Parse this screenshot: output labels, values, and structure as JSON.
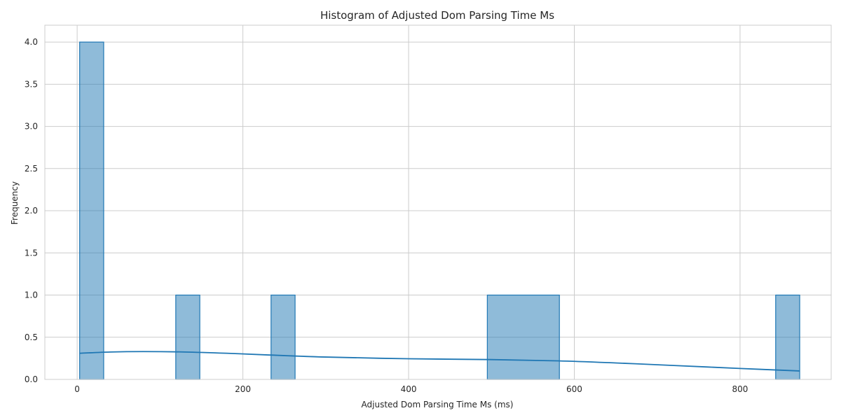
{
  "chart_data": {
    "type": "histogram",
    "title": "Histogram of Adjusted Dom Parsing Time Ms",
    "xlabel": "Adjusted Dom Parsing Time Ms (ms)",
    "ylabel": "Frequency",
    "xlim": [
      -39,
      910
    ],
    "ylim": [
      0,
      4.2
    ],
    "xticks": [
      0,
      200,
      400,
      600,
      800
    ],
    "yticks": [
      0.0,
      0.5,
      1.0,
      1.5,
      2.0,
      2.5,
      3.0,
      3.5,
      4.0
    ],
    "ytick_labels": [
      "0.0",
      "0.5",
      "1.0",
      "1.5",
      "2.0",
      "2.5",
      "3.0",
      "3.5",
      "4.0"
    ],
    "grid": true,
    "bins": [
      {
        "x0": 3,
        "x1": 32,
        "count": 4
      },
      {
        "x0": 119,
        "x1": 148,
        "count": 1
      },
      {
        "x0": 234,
        "x1": 263,
        "count": 1
      },
      {
        "x0": 495,
        "x1": 582,
        "count": 1
      },
      {
        "x0": 843,
        "x1": 872,
        "count": 1
      }
    ],
    "kde": {
      "x": [
        3,
        40,
        80,
        130,
        180,
        230,
        300,
        400,
        500,
        580,
        650,
        720,
        800,
        872
      ],
      "y": [
        0.31,
        0.325,
        0.33,
        0.325,
        0.31,
        0.29,
        0.265,
        0.245,
        0.235,
        0.22,
        0.195,
        0.165,
        0.13,
        0.1
      ]
    }
  }
}
